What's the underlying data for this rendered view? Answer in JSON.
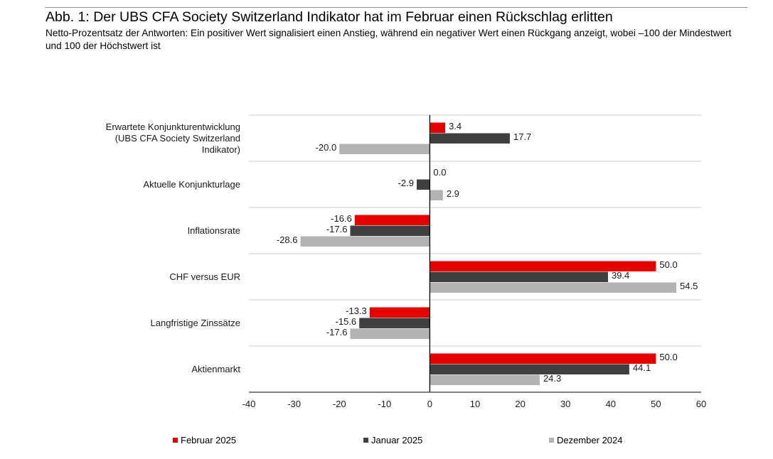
{
  "header": {
    "title": "Abb. 1: Der UBS CFA Society Switzerland Indikator hat im Februar einen Rückschlag erlitten",
    "subtitle": "Netto-Prozentsatz der Antworten: Ein positiver Wert signalisiert einen Anstieg, während ein negativer Wert einen Rückgang anzeigt, wobei –100 der Mindestwert und 100 der Höchstwert ist"
  },
  "chart_data": {
    "type": "bar",
    "orientation": "horizontal",
    "categories": [
      [
        "Erwartete Konjunkturentwicklung",
        "(UBS CFA Society Switzerland",
        "Indikator)"
      ],
      [
        "Aktuelle Konjunkturlage"
      ],
      [
        "Inflationsrate"
      ],
      [
        "CHF versus EUR"
      ],
      [
        "Langfristige Zinssätze"
      ],
      [
        "Aktienmarkt"
      ]
    ],
    "series": [
      {
        "name": "Februar 2025",
        "color": "#e60000",
        "values": [
          3.4,
          0.0,
          -16.6,
          50.0,
          -13.3,
          50.0
        ]
      },
      {
        "name": "Januar 2025",
        "color": "#404040",
        "values": [
          17.7,
          -2.9,
          -17.6,
          39.4,
          -15.6,
          44.1
        ]
      },
      {
        "name": "Dezember 2024",
        "color": "#b3b3b3",
        "values": [
          -20.0,
          2.9,
          -28.6,
          54.5,
          -17.6,
          24.3
        ]
      }
    ],
    "value_labels": [
      [
        "3.4",
        "0.0",
        "-16.6",
        "50.0",
        "-13.3",
        "50.0"
      ],
      [
        "17.7",
        "-2.9",
        "-17.6",
        "39.4",
        "-15.6",
        "44.1"
      ],
      [
        "-20.0",
        "2.9",
        "-28.6",
        "54.5",
        "-17.6",
        "24.3"
      ]
    ],
    "xlim": [
      -40,
      60
    ],
    "xticks": [
      "-40",
      "-30",
      "-20",
      "-10",
      "0",
      "10",
      "20",
      "30",
      "40",
      "50",
      "60"
    ],
    "grid": true,
    "legend_position": "bottom"
  }
}
